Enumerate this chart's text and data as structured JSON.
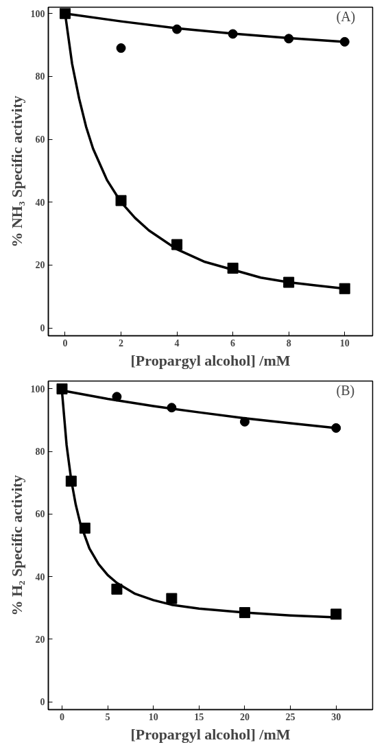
{
  "chart_data": [
    {
      "type": "scatter",
      "xlabel": "[Propargyl alcohol] /mM",
      "ylabel": "% NH₃ Specific activity",
      "annotations": [
        "(A)"
      ],
      "xlim": [
        -0.6,
        11
      ],
      "ylim": [
        -2.5,
        102
      ],
      "xticks": [
        0,
        2,
        4,
        6,
        8,
        10
      ],
      "yticks": [
        0,
        20,
        40,
        60,
        80,
        100
      ],
      "grid": false,
      "series": [
        {
          "marker": "circle",
          "color": "#000000",
          "x": [
            2,
            4,
            6,
            8,
            10
          ],
          "values": [
            89,
            95,
            93.5,
            92,
            91
          ]
        },
        {
          "marker": "square",
          "color": "#000000",
          "x": [
            0,
            2,
            4,
            6,
            8,
            10
          ],
          "values": [
            100,
            40.5,
            26.5,
            19,
            14.5,
            12.5
          ]
        },
        {
          "type": "line",
          "color": "#000000",
          "x": [
            0,
            2,
            4,
            6,
            8,
            10
          ],
          "values": [
            100,
            97.5,
            95.3,
            93.6,
            92.2,
            91
          ]
        },
        {
          "type": "line",
          "color": "#000000",
          "x": [
            0,
            0.25,
            0.5,
            0.75,
            1,
            1.5,
            2,
            2.5,
            3,
            4,
            5,
            6,
            7,
            8,
            9,
            10
          ],
          "values": [
            100,
            84,
            73,
            64,
            57,
            47,
            40,
            35,
            31,
            25,
            21,
            18.5,
            16,
            14.5,
            13.5,
            12.5
          ]
        }
      ]
    },
    {
      "type": "scatter",
      "xlabel": "[Propargyl alcohol] /mM",
      "ylabel": "% H₂ Specific activity",
      "annotations": [
        "(B)"
      ],
      "xlim": [
        -1.5,
        34
      ],
      "ylim": [
        -2.5,
        102.5
      ],
      "xticks": [
        0,
        5,
        10,
        15,
        20,
        25,
        30
      ],
      "yticks": [
        0,
        20,
        40,
        60,
        80,
        100
      ],
      "grid": false,
      "series": [
        {
          "marker": "circle",
          "color": "#000000",
          "x": [
            6,
            12,
            20,
            30
          ],
          "values": [
            97.5,
            94,
            89.5,
            87.5
          ]
        },
        {
          "marker": "square",
          "color": "#000000",
          "x": [
            0,
            1,
            2.5,
            6,
            12,
            20,
            30
          ],
          "values": [
            100,
            70.5,
            55.5,
            36,
            33,
            28.5,
            28
          ]
        },
        {
          "type": "line",
          "color": "#000000",
          "x": [
            0,
            5,
            10,
            15,
            20,
            25,
            30
          ],
          "values": [
            99.5,
            96.8,
            94.5,
            92.5,
            90.6,
            89,
            87.5
          ]
        },
        {
          "type": "line",
          "color": "#000000",
          "x": [
            0,
            0.5,
            1,
            1.5,
            2,
            3,
            4,
            5,
            6,
            8,
            10,
            12,
            15,
            20,
            25,
            30
          ],
          "values": [
            99,
            82,
            71,
            63,
            57,
            49,
            44,
            40.5,
            38,
            34.5,
            32.5,
            31,
            29.8,
            28.5,
            27.6,
            27
          ]
        }
      ]
    }
  ]
}
